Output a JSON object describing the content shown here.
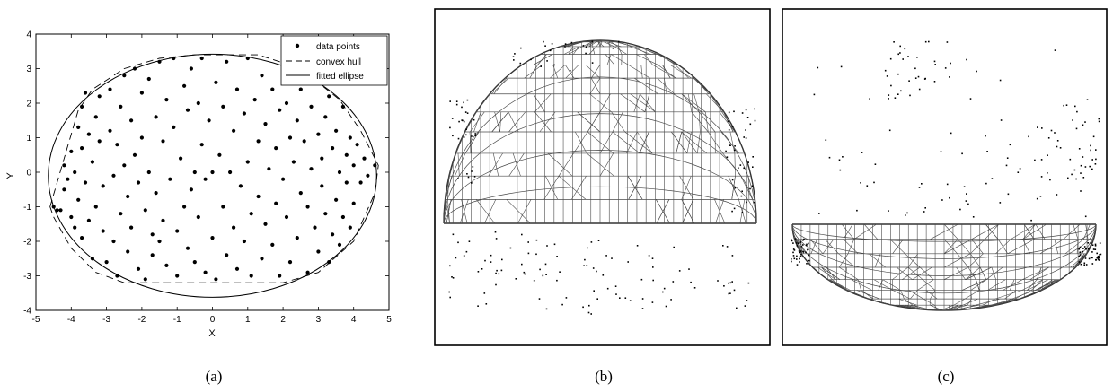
{
  "chart_data": [
    {
      "type": "scatter",
      "panel_label": "(a)",
      "xlabel": "X",
      "ylabel": "Y",
      "xlim": [
        -5,
        5
      ],
      "ylim": [
        -4,
        4
      ],
      "xticks": [
        -5,
        -4,
        -3,
        -2,
        -1,
        0,
        1,
        2,
        3,
        4,
        5
      ],
      "yticks": [
        -4,
        -3,
        -2,
        -1,
        0,
        1,
        2,
        3,
        4
      ],
      "legend_position": "top-right",
      "legend": [
        "data points",
        "convex hull",
        "fitted ellipse"
      ],
      "series": [
        {
          "name": "data points",
          "points": [
            [
              -4.5,
              -1.0
            ],
            [
              -4.4,
              -1.1
            ],
            [
              -4.3,
              -1.1
            ],
            [
              -4.2,
              -0.5
            ],
            [
              -4.2,
              0.2
            ],
            [
              -4.1,
              -0.2
            ],
            [
              -4.0,
              0.6
            ],
            [
              -4.0,
              -1.3
            ],
            [
              -3.9,
              0.0
            ],
            [
              -3.9,
              -1.6
            ],
            [
              -3.8,
              1.3
            ],
            [
              -3.8,
              -0.8
            ],
            [
              -3.7,
              1.9
            ],
            [
              -3.7,
              0.7
            ],
            [
              -3.7,
              -1.9
            ],
            [
              -3.6,
              2.3
            ],
            [
              -3.6,
              -0.3
            ],
            [
              -3.5,
              1.1
            ],
            [
              -3.5,
              -1.4
            ],
            [
              -3.4,
              0.3
            ],
            [
              -3.4,
              -2.5
            ],
            [
              -3.3,
              1.6
            ],
            [
              -3.3,
              -1.0
            ],
            [
              -3.2,
              2.2
            ],
            [
              -3.2,
              0.9
            ],
            [
              -3.1,
              -0.4
            ],
            [
              -3.1,
              -1.7
            ],
            [
              -3.0,
              -2.6
            ],
            [
              -2.9,
              2.4
            ],
            [
              -2.9,
              1.2
            ],
            [
              -2.8,
              -0.1
            ],
            [
              -2.8,
              -2.0
            ],
            [
              -2.7,
              0.8
            ],
            [
              -2.7,
              -3.0
            ],
            [
              -2.6,
              1.9
            ],
            [
              -2.6,
              -1.2
            ],
            [
              -2.5,
              2.8
            ],
            [
              -2.5,
              0.2
            ],
            [
              -2.4,
              -0.7
            ],
            [
              -2.4,
              -2.3
            ],
            [
              -2.3,
              1.5
            ],
            [
              -2.3,
              -1.6
            ],
            [
              -2.2,
              3.0
            ],
            [
              -2.2,
              0.5
            ],
            [
              -2.1,
              -0.3
            ],
            [
              -2.1,
              -2.8
            ],
            [
              -2.0,
              2.3
            ],
            [
              -2.0,
              1.0
            ],
            [
              -1.9,
              -1.1
            ],
            [
              -1.9,
              -3.1
            ],
            [
              -1.8,
              2.7
            ],
            [
              -1.8,
              0.0
            ],
            [
              -1.7,
              -1.8
            ],
            [
              -1.7,
              -2.4
            ],
            [
              -1.6,
              1.6
            ],
            [
              -1.6,
              -0.6
            ],
            [
              -1.5,
              3.2
            ],
            [
              -1.5,
              -2.0
            ],
            [
              -1.4,
              0.9
            ],
            [
              -1.4,
              -1.4
            ],
            [
              -1.3,
              2.1
            ],
            [
              -1.3,
              -2.7
            ],
            [
              -1.2,
              -0.2
            ],
            [
              -1.1,
              3.3
            ],
            [
              -1.1,
              1.3
            ],
            [
              -1.0,
              -1.7
            ],
            [
              -1.0,
              -3.0
            ],
            [
              -0.9,
              0.4
            ],
            [
              -0.8,
              2.5
            ],
            [
              -0.8,
              -1.0
            ],
            [
              -0.7,
              1.8
            ],
            [
              -0.7,
              -2.2
            ],
            [
              -0.6,
              3.0
            ],
            [
              -0.6,
              -0.5
            ],
            [
              -0.5,
              0.0
            ],
            [
              -0.5,
              -2.6
            ],
            [
              -0.4,
              2.0
            ],
            [
              -0.4,
              -1.3
            ],
            [
              -0.3,
              3.3
            ],
            [
              -0.3,
              0.8
            ],
            [
              -0.2,
              -0.2
            ],
            [
              -0.2,
              -2.9
            ],
            [
              -0.1,
              1.5
            ],
            [
              0.0,
              0.0
            ],
            [
              0.0,
              -1.9
            ],
            [
              0.1,
              2.6
            ],
            [
              0.1,
              -3.1
            ],
            [
              0.2,
              0.5
            ],
            [
              0.3,
              -1.0
            ],
            [
              0.3,
              1.9
            ],
            [
              0.4,
              3.2
            ],
            [
              0.4,
              -2.4
            ],
            [
              0.5,
              0.0
            ],
            [
              0.6,
              1.2
            ],
            [
              0.6,
              -1.6
            ],
            [
              0.7,
              2.4
            ],
            [
              0.7,
              -2.8
            ],
            [
              0.8,
              -0.4
            ],
            [
              0.9,
              1.7
            ],
            [
              0.9,
              -2.0
            ],
            [
              1.0,
              3.3
            ],
            [
              1.0,
              0.3
            ],
            [
              1.1,
              -1.2
            ],
            [
              1.1,
              -3.0
            ],
            [
              1.2,
              2.1
            ],
            [
              1.3,
              0.9
            ],
            [
              1.3,
              -0.7
            ],
            [
              1.4,
              2.8
            ],
            [
              1.4,
              -2.5
            ],
            [
              1.5,
              1.4
            ],
            [
              1.5,
              -1.5
            ],
            [
              1.6,
              0.1
            ],
            [
              1.7,
              2.4
            ],
            [
              1.7,
              -2.1
            ],
            [
              1.8,
              0.7
            ],
            [
              1.8,
              -0.9
            ],
            [
              1.9,
              1.8
            ],
            [
              1.9,
              -3.0
            ],
            [
              2.0,
              -0.2
            ],
            [
              2.1,
              2.0
            ],
            [
              2.1,
              -1.3
            ],
            [
              2.2,
              1.0
            ],
            [
              2.2,
              -2.6
            ],
            [
              2.3,
              0.3
            ],
            [
              2.4,
              1.5
            ],
            [
              2.4,
              -1.9
            ],
            [
              2.5,
              2.4
            ],
            [
              2.5,
              -0.6
            ],
            [
              2.6,
              0.9
            ],
            [
              2.7,
              -1.0
            ],
            [
              2.7,
              -2.9
            ],
            [
              2.8,
              1.9
            ],
            [
              2.8,
              0.1
            ],
            [
              2.9,
              -1.6
            ],
            [
              3.0,
              1.1
            ],
            [
              3.0,
              -2.3
            ],
            [
              3.1,
              0.4
            ],
            [
              3.1,
              -0.4
            ],
            [
              3.2,
              1.6
            ],
            [
              3.2,
              -1.2
            ],
            [
              3.3,
              2.2
            ],
            [
              3.3,
              -2.6
            ],
            [
              3.4,
              0.7
            ],
            [
              3.4,
              -1.8
            ],
            [
              3.5,
              1.2
            ],
            [
              3.5,
              -0.8
            ],
            [
              3.6,
              0.0
            ],
            [
              3.6,
              -2.1
            ],
            [
              3.7,
              1.9
            ],
            [
              3.7,
              -1.3
            ],
            [
              3.8,
              0.5
            ],
            [
              3.8,
              -0.3
            ],
            [
              3.9,
              1.0
            ],
            [
              3.9,
              -1.6
            ],
            [
              4.0,
              0.2
            ],
            [
              4.0,
              -0.9
            ],
            [
              4.1,
              0.8
            ],
            [
              4.2,
              -0.3
            ],
            [
              4.3,
              0.4
            ],
            [
              4.4,
              -0.1
            ],
            [
              4.6,
              0.2
            ]
          ]
        },
        {
          "name": "convex hull",
          "vertices": [
            [
              -4.6,
              -1.0
            ],
            [
              -4.2,
              0.4
            ],
            [
              -3.8,
              1.8
            ],
            [
              -3.4,
              2.4
            ],
            [
              -2.5,
              3.0
            ],
            [
              -1.5,
              3.3
            ],
            [
              -0.5,
              3.4
            ],
            [
              1.3,
              3.4
            ],
            [
              2.5,
              3.0
            ],
            [
              3.6,
              2.1
            ],
            [
              4.2,
              1.2
            ],
            [
              4.7,
              0.2
            ],
            [
              4.6,
              -0.6
            ],
            [
              4.0,
              -2.0
            ],
            [
              3.0,
              -2.9
            ],
            [
              2.0,
              -3.2
            ],
            [
              -1.0,
              -3.2
            ],
            [
              -2.5,
              -3.2
            ],
            [
              -3.3,
              -2.9
            ],
            [
              -4.0,
              -2.2
            ],
            [
              -4.5,
              -1.3
            ]
          ]
        },
        {
          "name": "fitted ellipse",
          "center": [
            0.0,
            -0.1
          ],
          "semi_axes": [
            4.65,
            3.52
          ]
        }
      ]
    },
    {
      "type": "3d-mesh",
      "panel_label": "(b)"
    },
    {
      "type": "3d-mesh",
      "panel_label": "(c)"
    }
  ]
}
